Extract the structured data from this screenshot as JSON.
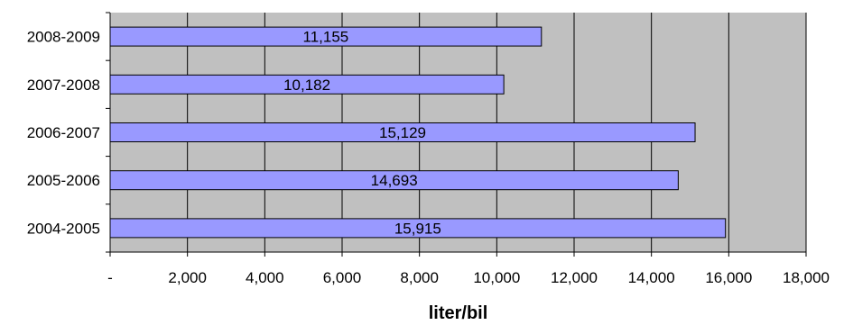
{
  "chart_data": {
    "type": "bar",
    "orientation": "horizontal",
    "categories": [
      "2008-2009",
      "2007-2008",
      "2006-2007",
      "2005-2006",
      "2004-2005"
    ],
    "values": [
      11155,
      10182,
      15129,
      14693,
      15915
    ],
    "value_labels": [
      "11,155",
      "10,182",
      "15,129",
      "14,693",
      "15,915"
    ],
    "xlabel": "liter/bil",
    "ylabel": "",
    "xlim": [
      0,
      18000
    ],
    "x_ticks": [
      0,
      2000,
      4000,
      6000,
      8000,
      10000,
      12000,
      14000,
      16000,
      18000
    ],
    "x_tick_labels": [
      "-",
      "2,000",
      "4,000",
      "6,000",
      "8,000",
      "10,000",
      "12,000",
      "14,000",
      "16,000",
      "18,000"
    ],
    "grid": "vertical",
    "legend": "none",
    "colors": {
      "plot_background": "#c0c0c0",
      "bar_fill": "#9999ff",
      "bar_stroke": "#000000",
      "gridline": "#000000"
    }
  }
}
